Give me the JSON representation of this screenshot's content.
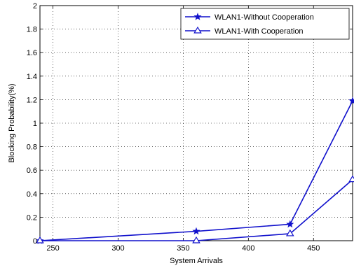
{
  "chart_data": {
    "type": "line",
    "xlabel": "System Arrivals",
    "ylabel": "Blocking Probability(%)",
    "xlim": [
      240,
      480
    ],
    "ylim": [
      0,
      2
    ],
    "xticks": [
      250,
      300,
      350,
      400,
      450
    ],
    "yticks": [
      0,
      0.2,
      0.4,
      0.6,
      0.8,
      1,
      1.2,
      1.4,
      1.6,
      1.8,
      2
    ],
    "grid": true,
    "legend_position": "top-right",
    "series": [
      {
        "name": "WLAN1-Without Cooperation",
        "marker": "star",
        "color": "#1010cc",
        "x": [
          240,
          360,
          432,
          480
        ],
        "y": [
          0,
          0.08,
          0.14,
          1.19
        ]
      },
      {
        "name": "WLAN1-With Cooperation",
        "marker": "triangle",
        "color": "#1010cc",
        "x": [
          240,
          360,
          432,
          480
        ],
        "y": [
          0,
          0,
          0.06,
          0.52
        ]
      }
    ]
  }
}
